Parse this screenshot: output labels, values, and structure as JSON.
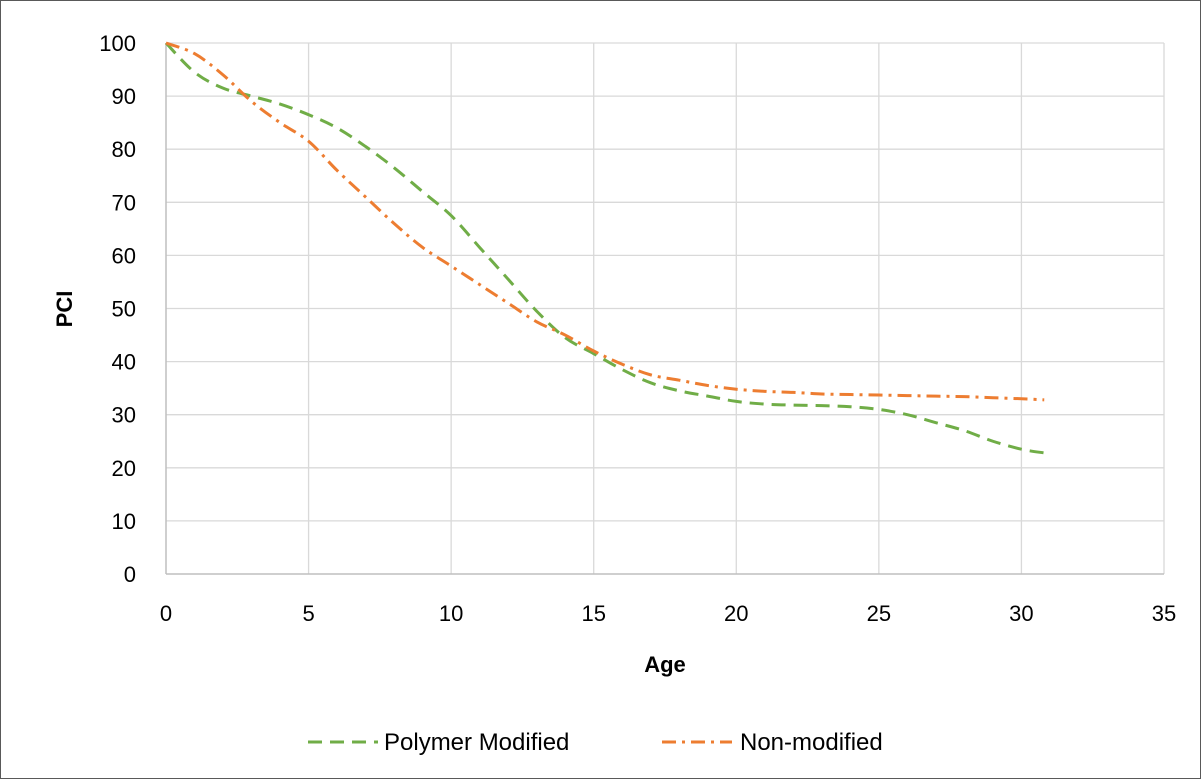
{
  "chart_data": {
    "type": "line",
    "title": "",
    "xlabel": "Age",
    "ylabel": "PCI",
    "xlim": [
      0,
      35
    ],
    "ylim": [
      0,
      100
    ],
    "x_ticks": [
      0,
      5,
      10,
      15,
      20,
      25,
      30,
      35
    ],
    "y_ticks": [
      0,
      10,
      20,
      30,
      40,
      50,
      60,
      70,
      80,
      90,
      100
    ],
    "grid": true,
    "legend_position": "bottom",
    "series": [
      {
        "name": "Polymer Modified",
        "color": "#70AD47",
        "line_style": "dashed",
        "x": [
          0,
          1,
          2,
          3,
          4,
          5,
          6,
          7,
          8,
          9,
          10,
          11,
          12,
          13,
          14,
          15,
          16,
          17,
          18,
          19,
          20,
          21,
          22,
          23,
          24,
          25,
          26,
          27,
          28,
          29,
          30,
          30.8
        ],
        "y": [
          100,
          94.5,
          91.5,
          90,
          88.5,
          86.5,
          84,
          80.5,
          76.5,
          72,
          67.5,
          61.5,
          55.5,
          49.5,
          44.5,
          41.5,
          38.5,
          36,
          34.5,
          33.5,
          32.5,
          32,
          31.8,
          31.7,
          31.5,
          31,
          30,
          28.5,
          27,
          25,
          23.5,
          22.8
        ]
      },
      {
        "name": "Non-modified",
        "color": "#ED7D31",
        "line_style": "dash-dot",
        "x": [
          0,
          1,
          2,
          3,
          4,
          5,
          6,
          7,
          8,
          9,
          10,
          11,
          12,
          13,
          14,
          15,
          16,
          17,
          18,
          19,
          20,
          21,
          22,
          23,
          24,
          25,
          26,
          27,
          28,
          29,
          30,
          30.8
        ],
        "y": [
          100,
          98,
          94,
          89,
          85,
          81.5,
          76,
          71,
          66,
          61.5,
          58,
          54.5,
          51,
          47.5,
          45,
          42,
          39.5,
          37.5,
          36.5,
          35.5,
          34.8,
          34.4,
          34.2,
          33.9,
          33.8,
          33.7,
          33.6,
          33.5,
          33.4,
          33.2,
          33,
          32.8
        ]
      }
    ]
  }
}
